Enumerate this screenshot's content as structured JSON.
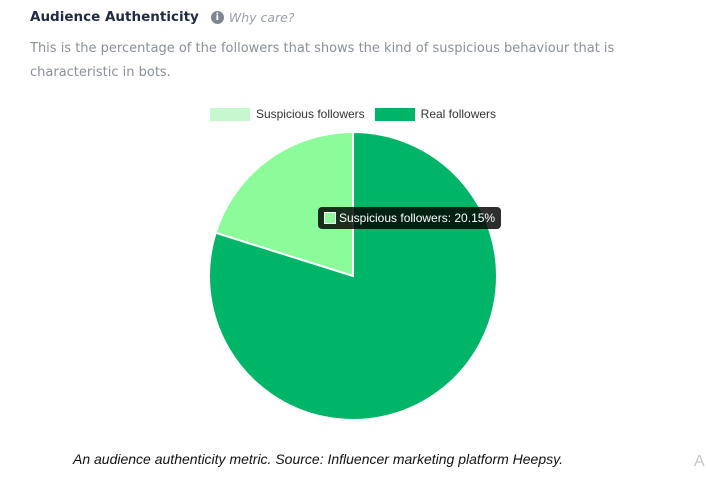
{
  "header": {
    "title": "Audience Authenticity",
    "info_icon": "info-icon",
    "why_link": "Why care?"
  },
  "description": "This is the percentage of the followers that shows the kind of suspicious behaviour that is characteristic in bots.",
  "chart_data": {
    "type": "pie",
    "categories": [
      "Suspicious followers",
      "Real followers"
    ],
    "values": [
      20.15,
      79.85
    ],
    "colors": [
      "#8cfc9b",
      "#00b567"
    ],
    "legend_colors": [
      "#c6f8cf",
      "#00b567"
    ],
    "legend_placement": "top",
    "tooltip": {
      "category": "Suspicious followers",
      "text": "Suspicious followers: 20.15%"
    }
  },
  "caption": "An audience authenticity metric. Source: Influencer marketing platform Heepsy.",
  "edge_text": "A"
}
